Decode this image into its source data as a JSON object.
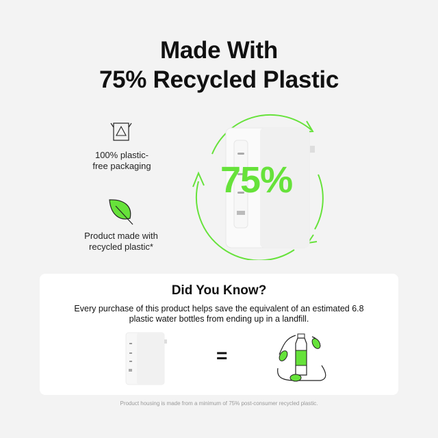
{
  "title": {
    "line1": "Made With",
    "line2": "75% Recycled Plastic"
  },
  "features": [
    {
      "icon": "recycle-box-icon",
      "label_line1": "100% plastic-",
      "label_line2": "free packaging"
    },
    {
      "icon": "leaf-icon",
      "label_line1": "Product made with",
      "label_line2": "recycled plastic*"
    }
  ],
  "hero": {
    "percent": "75%",
    "accent": "#66e23a"
  },
  "card": {
    "heading": "Did You Know?",
    "text_line1": "Every purchase of this product helps save the equivalent of an estimated 6.8",
    "text_line2": "plastic water bottles from ending up in a landfill.",
    "equals": "="
  },
  "footnote": "Product housing is made from a minimum of 75% post-consumer recycled plastic."
}
